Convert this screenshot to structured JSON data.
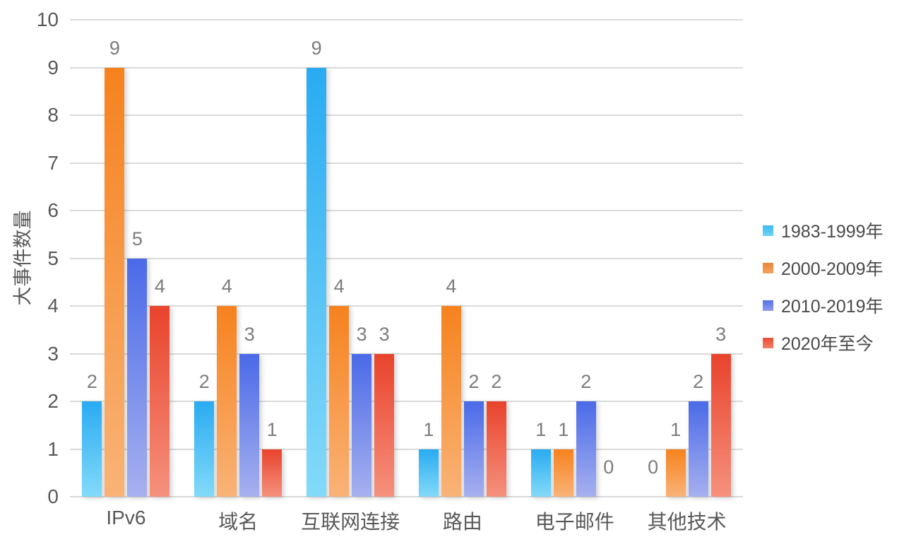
{
  "chart_data": {
    "type": "bar",
    "title": "",
    "xlabel": "",
    "ylabel": "大事件数量",
    "ylim": [
      0,
      10
    ],
    "yticks": [
      0,
      1,
      2,
      3,
      4,
      5,
      6,
      7,
      8,
      9,
      10
    ],
    "grid": true,
    "legend_position": "right",
    "show_data_labels": true,
    "categories": [
      "IPv6",
      "域名",
      "互联网连接",
      "路由",
      "电子邮件",
      "其他技术"
    ],
    "series": [
      {
        "name": "1983-1999年",
        "values": [
          2,
          2,
          9,
          1,
          1,
          0
        ],
        "color_top": "#29abf2",
        "color_bottom": "#83daf9",
        "legend_color_top": "#3cbcf3",
        "legend_color_bottom": "#6fd2f7"
      },
      {
        "name": "2000-2009年",
        "values": [
          9,
          4,
          4,
          4,
          1,
          1
        ],
        "color_top": "#f6821e",
        "color_bottom": "#f9b377",
        "legend_color_top": "#ee8334",
        "legend_color_bottom": "#f5a465"
      },
      {
        "name": "2010-2019年",
        "values": [
          5,
          3,
          3,
          2,
          2,
          2
        ],
        "color_top": "#4a6ae8",
        "color_bottom": "#a7b0ef",
        "legend_color_top": "#5672e8",
        "legend_color_bottom": "#8d9cee"
      },
      {
        "name": "2020年至今",
        "values": [
          4,
          1,
          3,
          2,
          0,
          3
        ],
        "color_top": "#e9432c",
        "color_bottom": "#f5917d",
        "legend_color_top": "#ed4c34",
        "legend_color_bottom": "#f28066"
      }
    ]
  },
  "colors": {
    "background": "#ffffff",
    "gridline": "#dadada",
    "axis_text": "#595959",
    "data_label_text": "#7c7c7c",
    "legend_text": "#4a4a4a"
  }
}
